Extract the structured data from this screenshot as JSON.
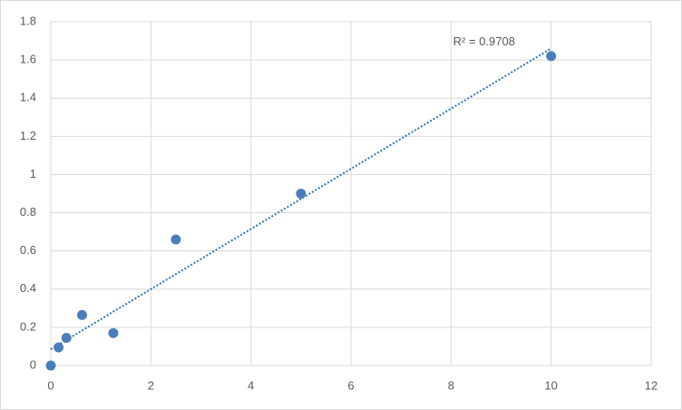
{
  "chart_data": {
    "type": "scatter",
    "x": [
      0,
      0.156,
      0.3125,
      0.625,
      1.25,
      2.5,
      5,
      10
    ],
    "values": [
      0,
      0.095,
      0.145,
      0.265,
      0.17,
      0.66,
      0.9,
      1.62
    ],
    "color": "#4a7ebb",
    "xlim": [
      0,
      12
    ],
    "xticks": [
      0,
      2,
      4,
      6,
      8,
      10,
      12
    ],
    "ylim": [
      0,
      1.8
    ],
    "yticks": [
      0,
      0.2,
      0.4,
      0.6,
      0.8,
      1,
      1.2,
      1.4,
      1.6,
      1.8
    ],
    "grid": true,
    "trendline": {
      "label": "R² = 0.9708",
      "color": "#2e75b6",
      "x": [
        0,
        10
      ],
      "values": [
        0.085,
        1.66
      ]
    }
  }
}
